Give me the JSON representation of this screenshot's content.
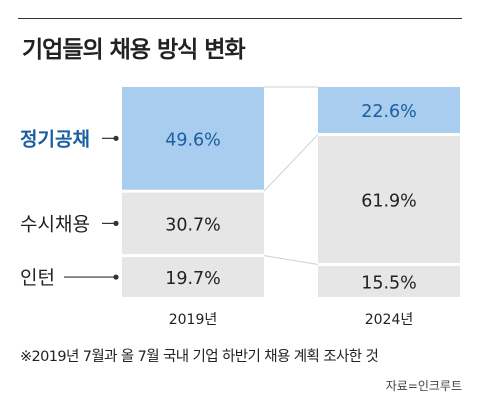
{
  "title": "기업들의 채용 방식 변화",
  "footnote": "※2019년 7월과 올 7월 국내 기업 하반기 채용 계획 조사한 것",
  "source": "자료=인크루트",
  "colors": {
    "highlight": "#a9cdee",
    "gray": "#e6e6e6",
    "highlight_text": "#1a5fa2",
    "text": "#222222"
  },
  "chart_data": {
    "type": "bar",
    "stacked": true,
    "normalized_percent": true,
    "categories": [
      "2019년",
      "2024년"
    ],
    "series": [
      {
        "name": "인턴",
        "values": [
          19.7,
          15.5
        ],
        "labels": [
          "19.7%",
          "15.5%"
        ],
        "highlight": false
      },
      {
        "name": "수시채용",
        "values": [
          30.7,
          61.9
        ],
        "labels": [
          "30.7%",
          "61.9%"
        ],
        "highlight": false
      },
      {
        "name": "정기공채",
        "values": [
          49.6,
          22.6
        ],
        "labels": [
          "49.6%",
          "22.6%"
        ],
        "highlight": true
      }
    ],
    "ylim": [
      0,
      100
    ],
    "connector_lines": true
  }
}
